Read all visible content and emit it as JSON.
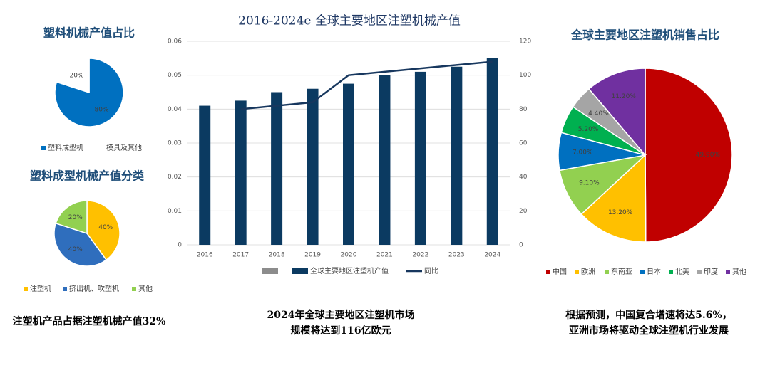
{
  "chart_data": [
    {
      "type": "pie",
      "title": "塑料机械产值占比",
      "categories": [
        "塑料成型机",
        "模具及其他"
      ],
      "values": [
        80,
        20
      ],
      "value_labels": [
        "80%",
        "20%"
      ],
      "colors": [
        "#0070c0",
        "#ffffff"
      ]
    },
    {
      "type": "pie",
      "title": "塑料成型机械产值分类",
      "categories": [
        "注塑机",
        "挤出机、吹塑机",
        "其他"
      ],
      "values": [
        40,
        40,
        20
      ],
      "value_labels": [
        "40%",
        "40%",
        "20%"
      ],
      "colors": [
        "#ffc000",
        "#2f6ebd",
        "#92d050"
      ]
    },
    {
      "type": "bar",
      "title": "2016-2024e 全球主要地区注塑机械产值",
      "categories": [
        "2016",
        "2017",
        "2018",
        "2019",
        "2020",
        "2021",
        "2022",
        "2023",
        "2024"
      ],
      "series": [
        {
          "name": "全球主要地区注塑机产值",
          "color": "#0b3a61",
          "values": [
            0.041,
            0.0425,
            0.045,
            0.046,
            0.0475,
            0.05,
            0.051,
            0.0525,
            0.055
          ]
        },
        {
          "name": "同比",
          "color": "#17375e",
          "axis": "y2",
          "type": "line",
          "values": [
            null,
            80,
            82,
            84,
            100,
            102,
            104,
            106,
            108
          ]
        }
      ],
      "ylim": [
        0,
        0.06
      ],
      "yticks": [
        0,
        0.01,
        0.02,
        0.03,
        0.04,
        0.05,
        0.06
      ],
      "y2lim": [
        0,
        120
      ],
      "y2ticks": [
        0,
        20,
        40,
        60,
        80,
        100,
        120
      ],
      "grid": true
    },
    {
      "type": "pie",
      "title": "全球主要地区注塑机销售占比",
      "categories": [
        "中国",
        "欧洲",
        "东南亚",
        "日本",
        "北美",
        "印度",
        "其他"
      ],
      "values": [
        49.9,
        13.2,
        9.1,
        7.0,
        5.2,
        4.4,
        11.2
      ],
      "value_labels": [
        "49.90%",
        "13.20%",
        "9.10%",
        "7.00%",
        "5.20%",
        "4.40%",
        "11.20%"
      ],
      "colors": [
        "#c00000",
        "#ffc000",
        "#92d050",
        "#0070c0",
        "#00b050",
        "#a5a5a5",
        "#7030a0"
      ]
    }
  ],
  "captions": [
    [
      "注塑机产品占据注塑机械产值32%"
    ],
    [
      "2024年全球主要地区注塑机市场",
      "规模将达到116亿欧元"
    ],
    [
      "根据预测，中国复合增速将达5.6%，",
      "亚洲市场将驱动全球注塑机行业发展"
    ]
  ]
}
